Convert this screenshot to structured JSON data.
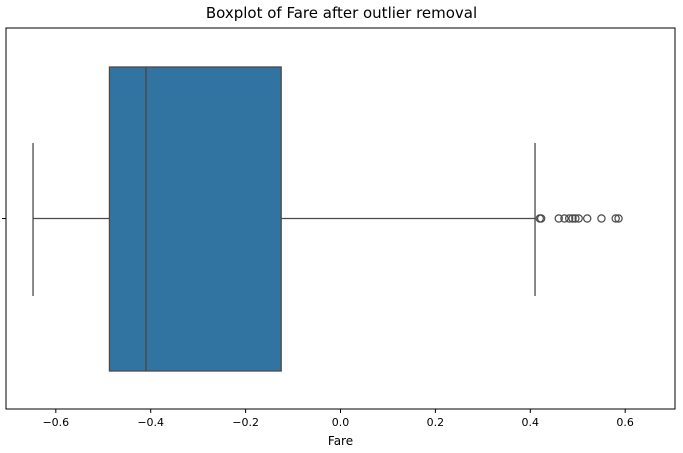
{
  "chart_data": {
    "type": "box",
    "title": "Boxplot of Fare after outlier removal",
    "xlabel": "Fare",
    "ylabel": "",
    "orientation": "horizontal",
    "xlim": [
      -0.705,
      0.705
    ],
    "xticks": [
      -0.6,
      -0.4,
      -0.2,
      0.0,
      0.2,
      0.4,
      0.6
    ],
    "xtick_labels": [
      "−0.6",
      "−0.4",
      "−0.2",
      "0.0",
      "0.2",
      "0.4",
      "0.6"
    ],
    "box": {
      "whisker_low": -0.648,
      "q1": -0.487,
      "median": -0.41,
      "q3": -0.125,
      "whisker_high": 0.41
    },
    "outliers": [
      0.42,
      0.423,
      0.46,
      0.472,
      0.482,
      0.489,
      0.495,
      0.502,
      0.52,
      0.55,
      0.58,
      0.586
    ],
    "colors": {
      "box_fill": "#3274a1",
      "line": "#4a4a4a"
    },
    "grid": false
  }
}
